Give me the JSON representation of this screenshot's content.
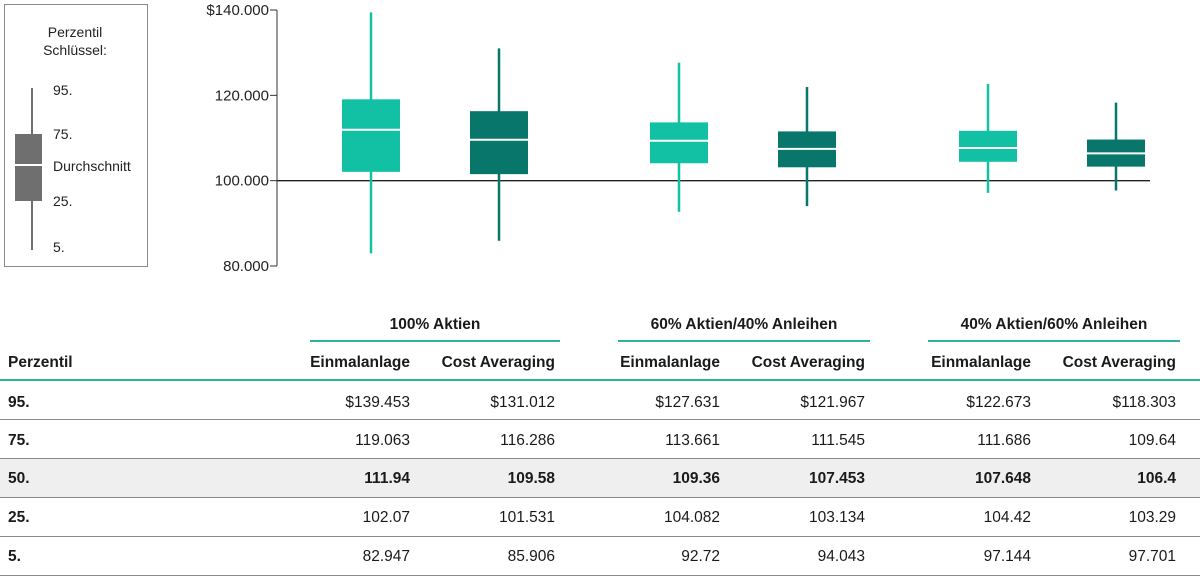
{
  "legend": {
    "title_line1": "Perzentil",
    "title_line2": "Schlüssel:",
    "p95": "95.",
    "p75": "75.",
    "mean": "Durchschnitt",
    "p25": "25.",
    "p5": "5.",
    "color": "#6f6f6f"
  },
  "colors": {
    "einmalanlage": "#12c0a3",
    "cost_averaging": "#08766b",
    "rule": "#2bb39b"
  },
  "chart_data": {
    "type": "box",
    "yticks": [
      "$140.000",
      "120.000",
      "100.000",
      "80.000"
    ],
    "ytick_values": [
      140000,
      120000,
      100000,
      80000
    ],
    "ylim": [
      80000,
      140000
    ],
    "baseline": 100000,
    "groups": [
      "100% Aktien",
      "60% Aktien/40% Anleihen",
      "40% Aktien/60% Anleihen"
    ],
    "series": [
      {
        "name": "Einmalanlage",
        "boxes": [
          {
            "p5": 82947,
            "p25": 102070,
            "p50": 111940,
            "p75": 119063,
            "p95": 139453
          },
          {
            "p5": 92720,
            "p25": 104082,
            "p50": 109360,
            "p75": 113661,
            "p95": 127631
          },
          {
            "p5": 97144,
            "p25": 104420,
            "p50": 107648,
            "p75": 111686,
            "p95": 122673
          }
        ]
      },
      {
        "name": "Cost Averaging",
        "boxes": [
          {
            "p5": 85906,
            "p25": 101531,
            "p50": 109580,
            "p75": 116286,
            "p95": 131012
          },
          {
            "p5": 94043,
            "p25": 103134,
            "p50": 107453,
            "p75": 111545,
            "p95": 121967
          },
          {
            "p5": 97701,
            "p25": 103290,
            "p50": 106400,
            "p75": 109640,
            "p95": 118303
          }
        ]
      }
    ]
  },
  "table": {
    "groups": [
      "100% Aktien",
      "60% Aktien/40% Anleihen",
      "40% Aktien/60% Anleihen"
    ],
    "row_header": "Perzentil",
    "subheaders": [
      "Einmalanlage",
      "Cost Averaging",
      "Einmalanlage",
      "Cost Averaging",
      "Einmalanlage",
      "Cost Averaging"
    ],
    "rows": [
      {
        "label": "95.",
        "values": [
          "$139.453",
          "$131.012",
          "$127.631",
          "$121.967",
          "$122.673",
          "$118.303"
        ]
      },
      {
        "label": "75.",
        "values": [
          "119.063",
          "116.286",
          "113.661",
          "111.545",
          "111.686",
          "109.64"
        ]
      },
      {
        "label": "50.",
        "values": [
          "111.94",
          "109.58",
          "109.36",
          "107.453",
          "107.648",
          "106.4"
        ]
      },
      {
        "label": "25.",
        "values": [
          "102.07",
          "101.531",
          "104.082",
          "103.134",
          "104.42",
          "103.29"
        ]
      },
      {
        "label": "5.",
        "values": [
          "82.947",
          "85.906",
          "92.72",
          "94.043",
          "97.144",
          "97.701"
        ]
      }
    ]
  }
}
